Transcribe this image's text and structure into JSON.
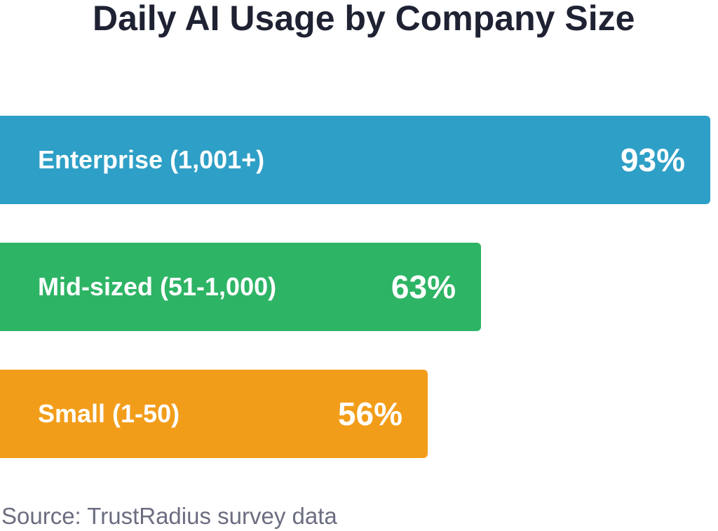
{
  "chart_data": {
    "type": "bar",
    "orientation": "horizontal",
    "title": "Daily AI Usage by Company Size",
    "categories": [
      "Enterprise (1,001+)",
      "Mid-sized (51-1,000)",
      "Small (1-50)"
    ],
    "values": [
      93,
      63,
      56
    ],
    "value_labels": [
      "93%",
      "63%",
      "56%"
    ],
    "colors": [
      "#2e9fc6",
      "#2db465",
      "#f29d1a"
    ],
    "xlim": [
      0,
      100
    ],
    "grid": false,
    "legend": "none",
    "xlabel": "",
    "ylabel": ""
  },
  "footer": {
    "source": "Source: TrustRadius survey data"
  }
}
